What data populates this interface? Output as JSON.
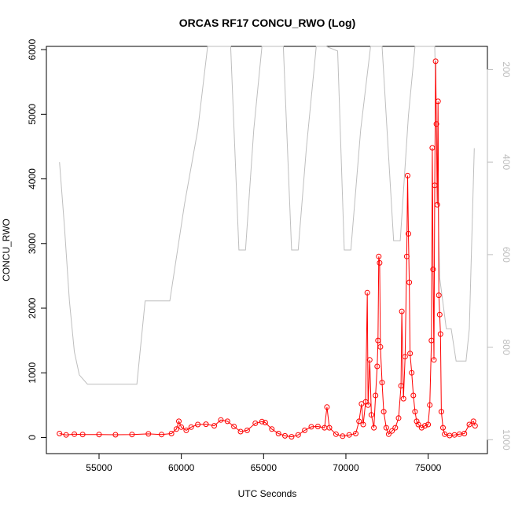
{
  "chart_data": {
    "type": "line",
    "title": "ORCAS RF17 CONCU_RWO (Log)",
    "xlabel": "UTC Seconds",
    "ylabel": "CONCU_RWO",
    "xlim": [
      51800,
      78600
    ],
    "ylim": [
      -250,
      6050
    ],
    "y2lim": [
      150,
      1030
    ],
    "y2_reversed": true,
    "x_ticks": [
      "55000",
      "60000",
      "65000",
      "70000",
      "75000"
    ],
    "y_ticks": [
      "0",
      "1000",
      "2000",
      "3000",
      "4000",
      "5000",
      "6000"
    ],
    "y2_ticks": [
      "200",
      "400",
      "600",
      "800",
      "1000"
    ],
    "grid": false,
    "colors": {
      "concentration": "#ff0000",
      "pressure": "#bebebe",
      "axes": "#000000",
      "secondary_axis": "#bdbdbd"
    },
    "series": [
      {
        "role": "concentration",
        "axis": "left",
        "style": "line+circles",
        "points": [
          [
            52600,
            60
          ],
          [
            53000,
            40
          ],
          [
            53500,
            50
          ],
          [
            54000,
            45
          ],
          [
            55000,
            45
          ],
          [
            56000,
            42
          ],
          [
            57000,
            45
          ],
          [
            58000,
            55
          ],
          [
            58800,
            45
          ],
          [
            59400,
            60
          ],
          [
            59700,
            130
          ],
          [
            59850,
            250
          ],
          [
            60000,
            160
          ],
          [
            60300,
            110
          ],
          [
            60600,
            160
          ],
          [
            61000,
            200
          ],
          [
            61500,
            205
          ],
          [
            62000,
            180
          ],
          [
            62400,
            270
          ],
          [
            62800,
            250
          ],
          [
            63200,
            170
          ],
          [
            63600,
            90
          ],
          [
            64000,
            110
          ],
          [
            64500,
            220
          ],
          [
            64900,
            245
          ],
          [
            65100,
            230
          ],
          [
            65500,
            130
          ],
          [
            65900,
            60
          ],
          [
            66300,
            25
          ],
          [
            66700,
            10
          ],
          [
            67100,
            40
          ],
          [
            67500,
            110
          ],
          [
            67900,
            165
          ],
          [
            68300,
            170
          ],
          [
            68700,
            150
          ],
          [
            68850,
            470
          ],
          [
            69000,
            150
          ],
          [
            69400,
            50
          ],
          [
            69800,
            20
          ],
          [
            70200,
            40
          ],
          [
            70600,
            60
          ],
          [
            70800,
            250
          ],
          [
            70950,
            520
          ],
          [
            71050,
            200
          ],
          [
            71200,
            550
          ],
          [
            71300,
            2240
          ],
          [
            71350,
            500
          ],
          [
            71450,
            1200
          ],
          [
            71550,
            350
          ],
          [
            71700,
            150
          ],
          [
            71800,
            650
          ],
          [
            71900,
            1100
          ],
          [
            71950,
            1500
          ],
          [
            72000,
            2800
          ],
          [
            72050,
            2700
          ],
          [
            72100,
            1400
          ],
          [
            72200,
            850
          ],
          [
            72300,
            400
          ],
          [
            72450,
            150
          ],
          [
            72600,
            50
          ],
          [
            72800,
            100
          ],
          [
            73000,
            150
          ],
          [
            73200,
            300
          ],
          [
            73350,
            800
          ],
          [
            73400,
            1950
          ],
          [
            73500,
            600
          ],
          [
            73600,
            1250
          ],
          [
            73700,
            2800
          ],
          [
            73750,
            4050
          ],
          [
            73800,
            3150
          ],
          [
            73850,
            2400
          ],
          [
            73900,
            1300
          ],
          [
            74000,
            1000
          ],
          [
            74100,
            650
          ],
          [
            74200,
            400
          ],
          [
            74300,
            250
          ],
          [
            74400,
            200
          ],
          [
            74600,
            150
          ],
          [
            74800,
            180
          ],
          [
            75000,
            200
          ],
          [
            75100,
            500
          ],
          [
            75200,
            1500
          ],
          [
            75250,
            4480
          ],
          [
            75300,
            2600
          ],
          [
            75350,
            1200
          ],
          [
            75400,
            3900
          ],
          [
            75450,
            5820
          ],
          [
            75500,
            4850
          ],
          [
            75550,
            3600
          ],
          [
            75600,
            5200
          ],
          [
            75650,
            2200
          ],
          [
            75700,
            1900
          ],
          [
            75750,
            1600
          ],
          [
            75800,
            400
          ],
          [
            75900,
            150
          ],
          [
            76000,
            50
          ],
          [
            76300,
            30
          ],
          [
            76600,
            40
          ],
          [
            76900,
            50
          ],
          [
            77200,
            60
          ],
          [
            77500,
            200
          ],
          [
            77750,
            250
          ],
          [
            77850,
            180
          ]
        ]
      },
      {
        "role": "pressure",
        "axis": "right",
        "style": "line",
        "points": [
          [
            52600,
            400
          ],
          [
            52900,
            540
          ],
          [
            53200,
            700
          ],
          [
            53500,
            810
          ],
          [
            53800,
            860
          ],
          [
            54300,
            880
          ],
          [
            55000,
            880
          ],
          [
            56000,
            880
          ],
          [
            56800,
            880
          ],
          [
            57300,
            880
          ],
          [
            57800,
            700
          ],
          [
            58500,
            700
          ],
          [
            59300,
            700
          ],
          [
            60200,
            490
          ],
          [
            61000,
            330
          ],
          [
            61600,
            150
          ],
          [
            62000,
            150
          ],
          [
            62400,
            150
          ],
          [
            63000,
            150
          ],
          [
            63500,
            590
          ],
          [
            63900,
            590
          ],
          [
            64400,
            330
          ],
          [
            64900,
            150
          ],
          [
            65500,
            150
          ],
          [
            66200,
            150
          ],
          [
            66700,
            590
          ],
          [
            67100,
            590
          ],
          [
            67600,
            370
          ],
          [
            68200,
            150
          ],
          [
            68800,
            150
          ],
          [
            69500,
            160
          ],
          [
            69900,
            590
          ],
          [
            70300,
            590
          ],
          [
            70900,
            330
          ],
          [
            71500,
            150
          ],
          [
            72200,
            150
          ],
          [
            72900,
            570
          ],
          [
            73300,
            570
          ],
          [
            73800,
            300
          ],
          [
            74200,
            150
          ],
          [
            74800,
            150
          ],
          [
            75400,
            150
          ],
          [
            75700,
            650
          ],
          [
            76100,
            760
          ],
          [
            76400,
            760
          ],
          [
            76700,
            830
          ],
          [
            77300,
            830
          ],
          [
            77500,
            760
          ],
          [
            77800,
            370
          ]
        ]
      }
    ]
  }
}
